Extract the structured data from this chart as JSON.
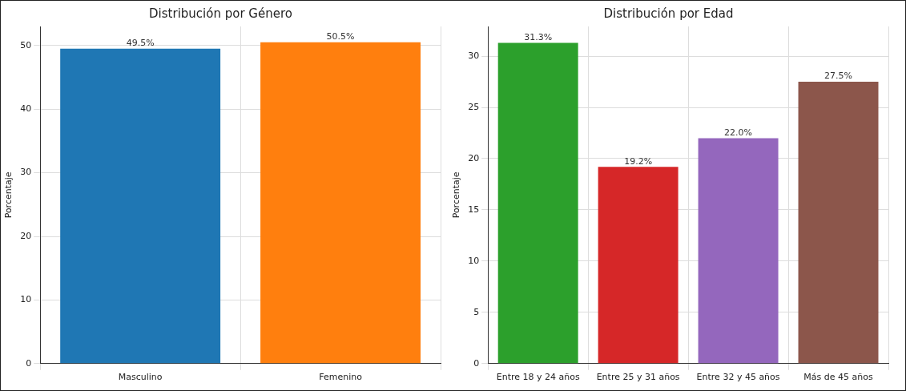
{
  "chart_data": [
    {
      "type": "bar",
      "title": "Distribución por Género",
      "ylabel": "Porcentaje",
      "categories": [
        "Masculino",
        "Femenino"
      ],
      "values": [
        49.5,
        50.5
      ],
      "colors": [
        "#1f77b4",
        "#ff7f0e"
      ],
      "value_labels": [
        "49.5%",
        "50.5%"
      ],
      "ylim": [
        0,
        53
      ],
      "yticks": [
        0,
        10,
        20,
        30,
        40,
        50
      ],
      "grid": true
    },
    {
      "type": "bar",
      "title": "Distribución por Edad",
      "ylabel": "Porcentaje",
      "categories": [
        "Entre 18 y 24 años",
        "Entre 25 y 31 años",
        "Entre 32 y 45 años",
        "Más de 45 años"
      ],
      "values": [
        31.3,
        19.2,
        22.0,
        27.5
      ],
      "colors": [
        "#2ca02c",
        "#d62728",
        "#9467bd",
        "#8c564b"
      ],
      "value_labels": [
        "31.3%",
        "19.2%",
        "22.0%",
        "27.5%"
      ],
      "ylim": [
        0,
        32.9
      ],
      "yticks": [
        0,
        5,
        10,
        15,
        20,
        25,
        30
      ],
      "grid": true
    }
  ]
}
